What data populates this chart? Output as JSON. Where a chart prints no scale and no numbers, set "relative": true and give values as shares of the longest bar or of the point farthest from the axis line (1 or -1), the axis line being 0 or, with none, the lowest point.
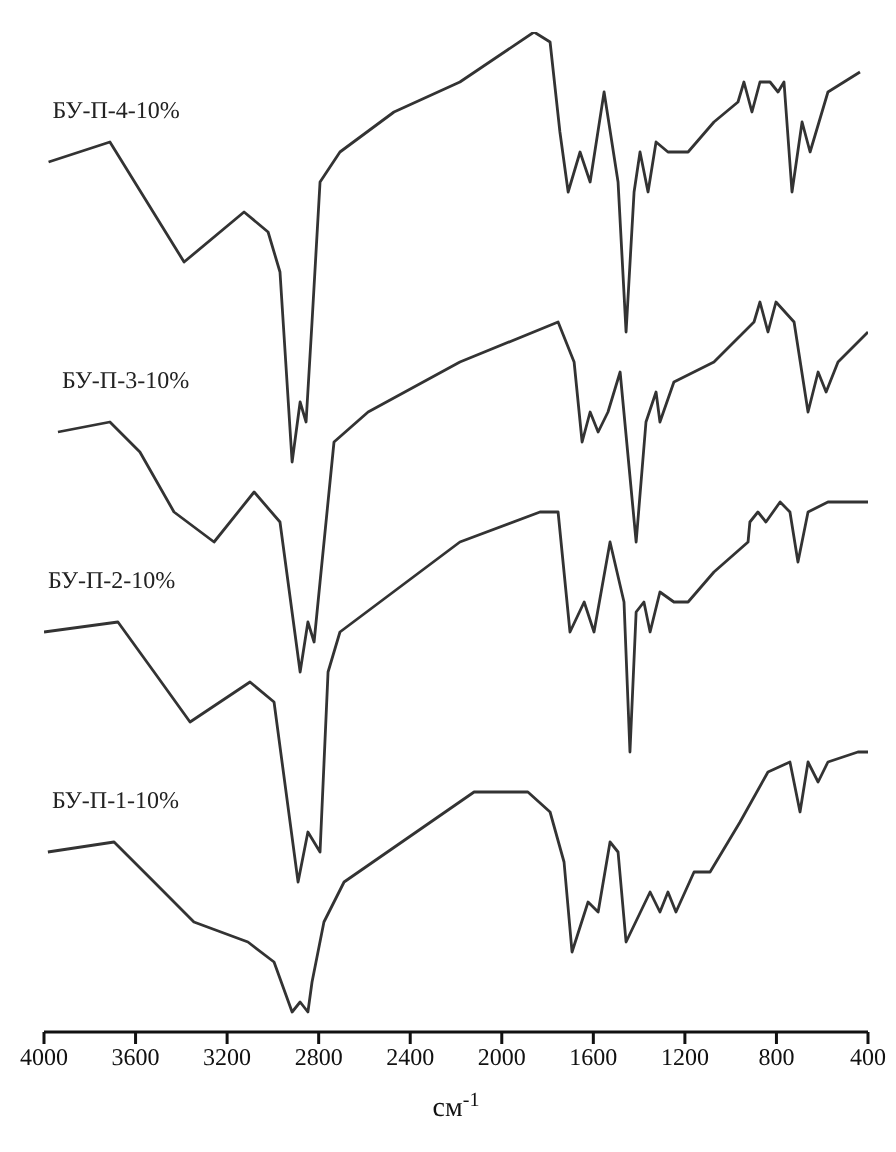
{
  "chart_data": {
    "type": "line",
    "xlabel": "см$^{-1}$",
    "relative": true,
    "xlim": [
      4000,
      400
    ],
    "xticks": [
      4000,
      3600,
      3200,
      2800,
      2400,
      2000,
      1600,
      1200,
      800,
      400
    ],
    "series": [
      {
        "name": "БУ-П-4-10%",
        "color": "#333333",
        "x": [
          3980,
          3712,
          3388,
          3126,
          3021,
          2969,
          2916,
          2881,
          2855,
          2829,
          2794,
          2707,
          2471,
          2183,
          1859,
          1789,
          1746,
          1710,
          1658,
          1614,
          1553,
          1492,
          1457,
          1422,
          1396,
          1361,
          1326,
          1274,
          1186,
          1073,
          968,
          942,
          907,
          872,
          828,
          793,
          767,
          732,
          688,
          653,
          575,
          435
        ],
        "values": [
          0.87,
          0.89,
          0.77,
          0.82,
          0.8,
          0.76,
          0.57,
          0.63,
          0.61,
          0.71,
          0.85,
          0.88,
          0.92,
          0.95,
          1.0,
          0.99,
          0.9,
          0.84,
          0.88,
          0.85,
          0.94,
          0.85,
          0.7,
          0.84,
          0.88,
          0.84,
          0.89,
          0.88,
          0.88,
          0.91,
          0.93,
          0.95,
          0.92,
          0.95,
          0.95,
          0.94,
          0.95,
          0.84,
          0.91,
          0.88,
          0.94,
          0.96
        ]
      },
      {
        "name": "БУ-П-3-10%",
        "color": "#333333",
        "x": [
          3939,
          3712,
          3581,
          3432,
          3257,
          3082,
          2969,
          2881,
          2847,
          2820,
          2794,
          2733,
          2584,
          2183,
          1754,
          1684,
          1649,
          1614,
          1579,
          1536,
          1483,
          1413,
          1370,
          1326,
          1309,
          1248,
          1073,
          898,
          872,
          837,
          802,
          723,
          662,
          618,
          583,
          531,
          400
        ],
        "values": [
          0.6,
          0.61,
          0.58,
          0.52,
          0.49,
          0.54,
          0.51,
          0.36,
          0.41,
          0.39,
          0.45,
          0.59,
          0.62,
          0.67,
          0.71,
          0.67,
          0.59,
          0.62,
          0.6,
          0.62,
          0.66,
          0.49,
          0.61,
          0.64,
          0.61,
          0.65,
          0.67,
          0.71,
          0.73,
          0.7,
          0.73,
          0.71,
          0.62,
          0.66,
          0.64,
          0.67,
          0.7
        ]
      },
      {
        "name": "БУ-П-2-10%",
        "color": "#333333",
        "x": [
          4000,
          3677,
          3519,
          3362,
          3100,
          2995,
          2890,
          2847,
          2794,
          2759,
          2707,
          2183,
          1833,
          1754,
          1702,
          1640,
          1597,
          1527,
          1466,
          1440,
          1413,
          1379,
          1352,
          1309,
          1248,
          1186,
          1073,
          924,
          916,
          881,
          846,
          784,
          741,
          706,
          662,
          575,
          400
        ],
        "values": [
          0.4,
          0.41,
          0.36,
          0.31,
          0.35,
          0.33,
          0.15,
          0.2,
          0.18,
          0.36,
          0.4,
          0.49,
          0.52,
          0.52,
          0.4,
          0.43,
          0.4,
          0.49,
          0.43,
          0.28,
          0.42,
          0.43,
          0.4,
          0.44,
          0.43,
          0.43,
          0.46,
          0.49,
          0.51,
          0.52,
          0.51,
          0.53,
          0.52,
          0.47,
          0.52,
          0.53,
          0.53
        ]
      },
      {
        "name": "БУ-П-1-10%",
        "color": "#333333",
        "x": [
          3983,
          3694,
          3519,
          3345,
          3109,
          2995,
          2916,
          2881,
          2847,
          2829,
          2777,
          2689,
          2121,
          1886,
          1789,
          1728,
          1693,
          1623,
          1579,
          1527,
          1492,
          1457,
          1352,
          1309,
          1274,
          1239,
          1160,
          1090,
          959,
          837,
          741,
          697,
          662,
          618,
          575,
          444,
          400
        ],
        "values": [
          0.18,
          0.19,
          0.15,
          0.11,
          0.09,
          0.07,
          0.02,
          0.03,
          0.02,
          0.05,
          0.11,
          0.15,
          0.24,
          0.24,
          0.22,
          0.17,
          0.08,
          0.13,
          0.12,
          0.19,
          0.18,
          0.09,
          0.14,
          0.12,
          0.14,
          0.12,
          0.16,
          0.16,
          0.21,
          0.26,
          0.27,
          0.22,
          0.27,
          0.25,
          0.27,
          0.28,
          0.28
        ]
      }
    ]
  }
}
